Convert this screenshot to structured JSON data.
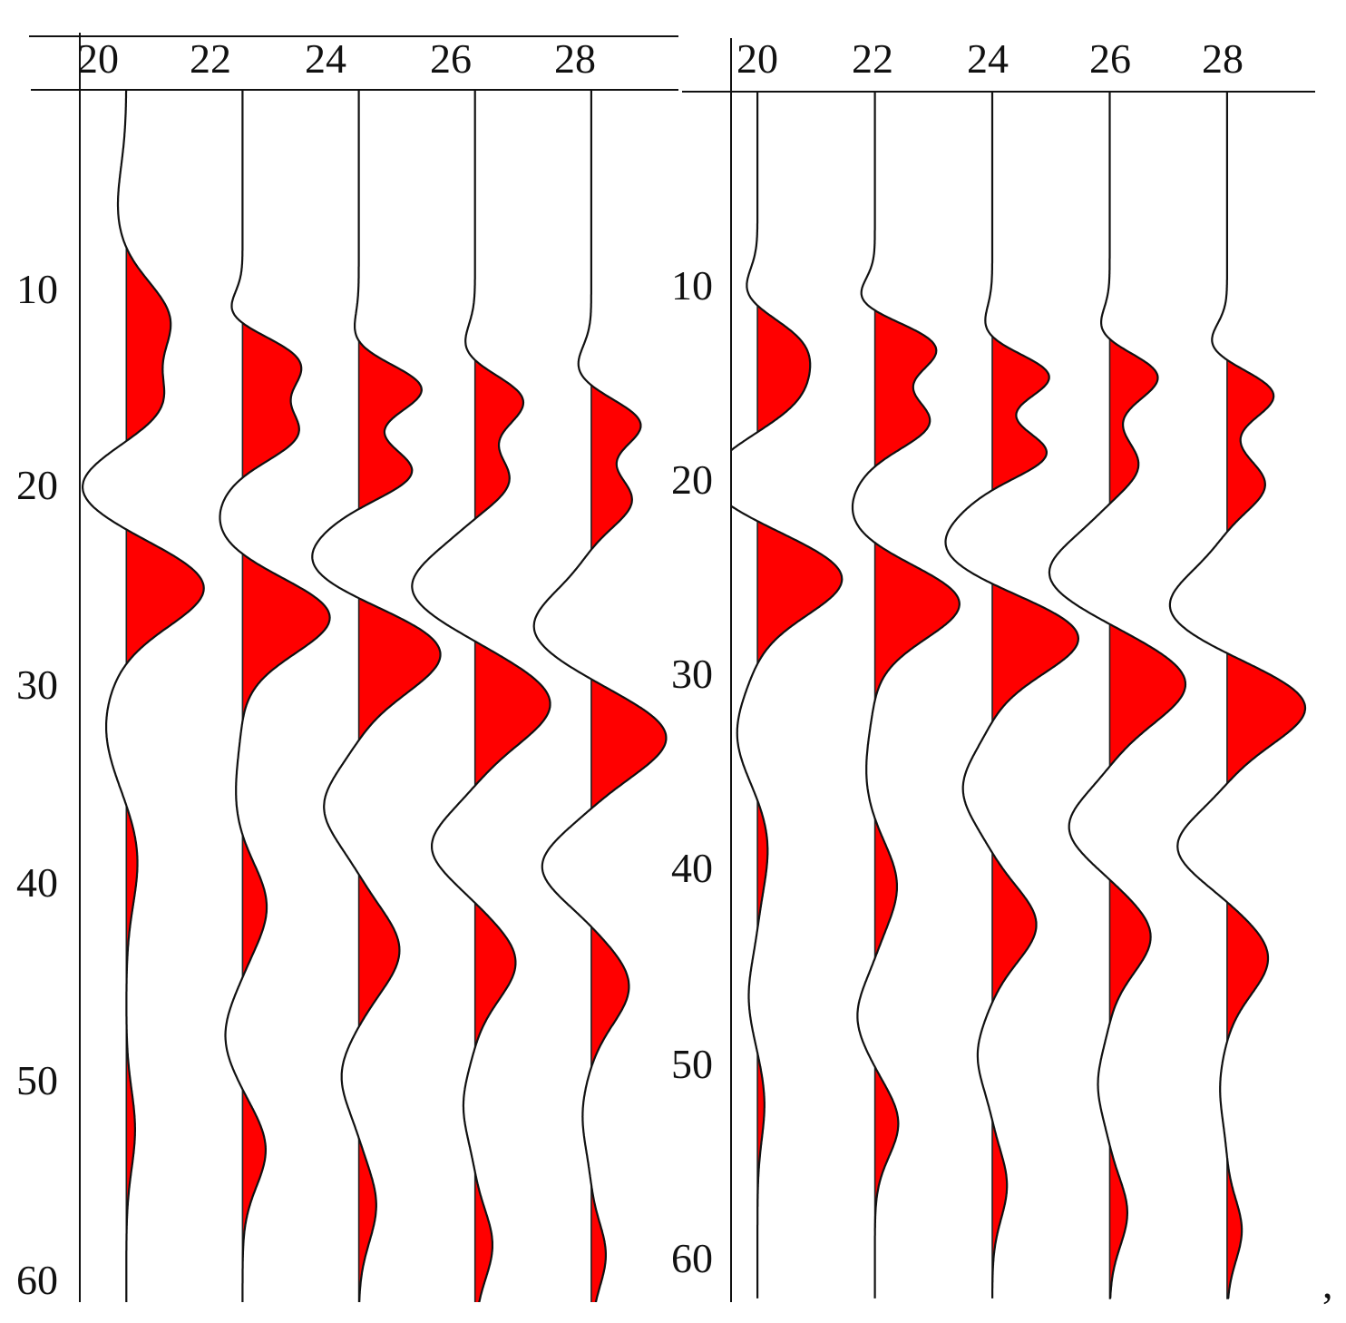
{
  "chart_data": [
    {
      "type": "wiggle",
      "x_ticks": [
        "20",
        "22",
        "24",
        "26",
        "28"
      ],
      "y_ticks": [
        "10",
        "20",
        "30",
        "40",
        "50",
        "60"
      ],
      "xlim": [
        19.2,
        29.5
      ],
      "ylim": [
        0,
        62
      ],
      "fill_color": "#ff0000",
      "line_color": "#111111",
      "traces": [
        {
          "x": 20,
          "peaks": [
            [
              11.6,
              0.75,
              2.6
            ],
            [
              15.8,
              0.6,
              2.2
            ],
            [
              25.0,
              1.35,
              2.6
            ],
            [
              38.6,
              0.2,
              3.2
            ],
            [
              52.2,
              0.15,
              2.8
            ]
          ],
          "troughs": [
            [
              6.0,
              0.15,
              3.0
            ],
            [
              20.0,
              0.8,
              2.4
            ],
            [
              32.0,
              0.35,
              3.5
            ]
          ]
        },
        {
          "x": 22,
          "peaks": [
            [
              13.8,
              1.0,
              2.0
            ],
            [
              17.3,
              0.95,
              1.8
            ],
            [
              26.4,
              1.55,
              2.6
            ],
            [
              41.0,
              0.42,
              2.8
            ],
            [
              53.2,
              0.4,
              2.6
            ]
          ],
          "troughs": [
            [
              11.4,
              0.35,
              1.4
            ],
            [
              22.0,
              0.45,
              3.0
            ],
            [
              35.5,
              0.12,
              3.0
            ],
            [
              47.5,
              0.3,
              2.6
            ]
          ]
        },
        {
          "x": 24,
          "peaks": [
            [
              15.0,
              1.1,
              1.7
            ],
            [
              19.2,
              0.95,
              1.7
            ],
            [
              28.2,
              1.45,
              2.8
            ],
            [
              43.2,
              0.7,
              2.8
            ],
            [
              56.0,
              0.3,
              2.6
            ]
          ],
          "troughs": [
            [
              12.8,
              0.15,
              1.6
            ],
            [
              23.8,
              0.9,
              2.6
            ],
            [
              36.0,
              0.6,
              2.6
            ],
            [
              49.5,
              0.3,
              2.4
            ]
          ]
        },
        {
          "x": 26,
          "peaks": [
            [
              15.6,
              0.85,
              1.8
            ],
            [
              19.6,
              0.6,
              1.8
            ],
            [
              30.8,
              1.3,
              2.8
            ],
            [
              43.8,
              0.7,
              2.6
            ],
            [
              58.0,
              0.3,
              2.4
            ]
          ],
          "troughs": [
            [
              13.2,
              0.25,
              1.6
            ],
            [
              25.0,
              1.1,
              2.6
            ],
            [
              38.0,
              0.75,
              2.4
            ],
            [
              51.0,
              0.2,
              2.4
            ]
          ]
        },
        {
          "x": 28,
          "peaks": [
            [
              16.8,
              0.85,
              1.6
            ],
            [
              20.6,
              0.7,
              1.8
            ],
            [
              32.5,
              1.3,
              2.6
            ],
            [
              45.0,
              0.65,
              2.6
            ],
            [
              58.5,
              0.25,
              2.2
            ]
          ],
          "troughs": [
            [
              14.0,
              0.25,
              1.5
            ],
            [
              27.0,
              1.0,
              2.6
            ],
            [
              39.0,
              0.85,
              2.4
            ],
            [
              51.5,
              0.15,
              2.4
            ]
          ]
        }
      ]
    },
    {
      "type": "wiggle",
      "x_ticks": [
        "20",
        "22",
        "24",
        "26",
        "28"
      ],
      "y_ticks": [
        "10",
        "20",
        "30",
        "40",
        "50",
        "60"
      ],
      "xlim": [
        19.55,
        29.5
      ],
      "ylim": [
        0,
        62
      ],
      "fill_color": "#ff0000",
      "line_color": "#111111",
      "traces": [
        {
          "x": 20,
          "peaks": [
            [
              13.2,
              0.75,
              2.2
            ],
            [
              15.8,
              0.55,
              2.0
            ],
            [
              25.0,
              1.45,
              2.6
            ],
            [
              38.8,
              0.18,
              3.0
            ],
            [
              52.0,
              0.12,
              2.6
            ]
          ],
          "troughs": [
            [
              10.5,
              0.3,
              1.6
            ],
            [
              20.0,
              0.85,
              2.4
            ],
            [
              33.0,
              0.35,
              3.0
            ],
            [
              46.5,
              0.15,
              2.6
            ]
          ]
        },
        {
          "x": 22,
          "peaks": [
            [
              13.2,
              1.05,
              1.8
            ],
            [
              17.0,
              0.95,
              1.8
            ],
            [
              26.2,
              1.5,
              2.6
            ],
            [
              40.8,
              0.38,
              2.8
            ],
            [
              53.0,
              0.4,
              2.4
            ]
          ],
          "troughs": [
            [
              10.8,
              0.35,
              1.4
            ],
            [
              22.0,
              0.45,
              3.0
            ],
            [
              35.0,
              0.15,
              3.0
            ],
            [
              47.5,
              0.3,
              2.4
            ]
          ]
        },
        {
          "x": 24,
          "peaks": [
            [
              14.6,
              1.0,
              1.6
            ],
            [
              18.6,
              0.95,
              1.6
            ],
            [
              28.0,
              1.5,
              2.6
            ],
            [
              42.8,
              0.75,
              2.6
            ],
            [
              56.2,
              0.25,
              2.4
            ]
          ],
          "troughs": [
            [
              12.5,
              0.2,
              1.6
            ],
            [
              23.4,
              0.85,
              2.6
            ],
            [
              35.8,
              0.5,
              2.6
            ],
            [
              49.5,
              0.25,
              2.4
            ]
          ]
        },
        {
          "x": 26,
          "peaks": [
            [
              14.6,
              0.85,
              1.7
            ],
            [
              19.2,
              0.5,
              1.8
            ],
            [
              30.4,
              1.3,
              2.8
            ],
            [
              43.4,
              0.7,
              2.6
            ],
            [
              57.6,
              0.3,
              2.4
            ]
          ],
          "troughs": [
            [
              12.5,
              0.25,
              1.5
            ],
            [
              24.8,
              1.05,
              2.6
            ],
            [
              37.8,
              0.7,
              2.4
            ],
            [
              51.0,
              0.2,
              2.4
            ]
          ]
        },
        {
          "x": 28,
          "peaks": [
            [
              15.6,
              0.8,
              1.6
            ],
            [
              20.2,
              0.65,
              1.8
            ],
            [
              31.6,
              1.35,
              2.6
            ],
            [
              44.5,
              0.7,
              2.6
            ],
            [
              58.5,
              0.25,
              2.2
            ]
          ],
          "troughs": [
            [
              13.0,
              0.3,
              1.4
            ],
            [
              26.5,
              1.0,
              2.6
            ],
            [
              38.8,
              0.85,
              2.4
            ],
            [
              51.2,
              0.12,
              2.4
            ]
          ]
        }
      ]
    }
  ],
  "trailing_mark": ","
}
